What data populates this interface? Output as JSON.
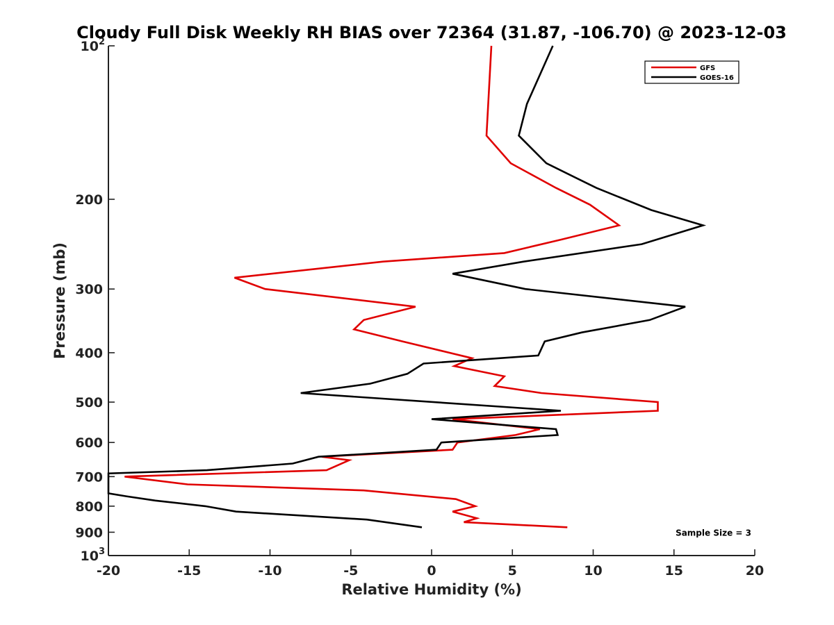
{
  "chart_data": {
    "type": "line",
    "title": "Cloudy Full Disk Weekly RH BIAS over 72364 (31.87, -106.70) @ 2023-12-03",
    "xlabel": "Relative Humidity (%)",
    "ylabel": "Pressure (mb)",
    "xlim": [
      -20,
      20
    ],
    "ylim": [
      100,
      1000
    ],
    "y_scale": "log",
    "y_reversed": true,
    "grid": false,
    "legend_position": "top-right",
    "x_ticks": [
      "-20",
      "-15",
      "-10",
      "-5",
      "0",
      "5",
      "10",
      "15",
      "20"
    ],
    "y_ticks": [
      {
        "value": 100,
        "label": "10",
        "exp": "2"
      },
      {
        "value": 200,
        "label": "200"
      },
      {
        "value": 300,
        "label": "300"
      },
      {
        "value": 400,
        "label": "400"
      },
      {
        "value": 500,
        "label": "500"
      },
      {
        "value": 600,
        "label": "600"
      },
      {
        "value": 700,
        "label": "700"
      },
      {
        "value": 800,
        "label": "800"
      },
      {
        "value": 900,
        "label": "900"
      },
      {
        "value": 1000,
        "label": "10",
        "exp": "3"
      }
    ],
    "series": [
      {
        "name": "GFS",
        "color": "#e00000",
        "points": [
          [
            3.7,
            100
          ],
          [
            3.4,
            150
          ],
          [
            4.9,
            170
          ],
          [
            7.7,
            190
          ],
          [
            9.8,
            205
          ],
          [
            11.6,
            225
          ],
          [
            8.0,
            240
          ],
          [
            4.5,
            255
          ],
          [
            -3.0,
            265
          ],
          [
            -12.2,
            285
          ],
          [
            -10.3,
            300
          ],
          [
            -1.0,
            325
          ],
          [
            -4.2,
            345
          ],
          [
            -4.8,
            360
          ],
          [
            -1.8,
            380
          ],
          [
            2.5,
            410
          ],
          [
            1.4,
            425
          ],
          [
            4.5,
            445
          ],
          [
            3.9,
            465
          ],
          [
            6.8,
            480
          ],
          [
            14.0,
            500
          ],
          [
            14.0,
            520
          ],
          [
            1.3,
            540
          ],
          [
            6.7,
            565
          ],
          [
            5.2,
            580
          ],
          [
            1.6,
            600
          ],
          [
            1.3,
            620
          ],
          [
            -6.8,
            640
          ],
          [
            -5.1,
            650
          ],
          [
            -6.5,
            680
          ],
          [
            -19.0,
            700
          ],
          [
            -15.1,
            725
          ],
          [
            -4.2,
            745
          ],
          [
            1.5,
            775
          ],
          [
            2.7,
            800
          ],
          [
            1.3,
            820
          ],
          [
            2.8,
            845
          ],
          [
            2.0,
            860
          ],
          [
            8.4,
            880
          ]
        ]
      },
      {
        "name": "GOES-16",
        "color": "#000000",
        "points": [
          [
            7.5,
            100
          ],
          [
            5.9,
            130
          ],
          [
            5.4,
            150
          ],
          [
            7.1,
            170
          ],
          [
            10.2,
            190
          ],
          [
            13.6,
            210
          ],
          [
            16.8,
            225
          ],
          [
            13.0,
            245
          ],
          [
            5.7,
            265
          ],
          [
            1.3,
            280
          ],
          [
            5.8,
            300
          ],
          [
            15.7,
            325
          ],
          [
            13.5,
            345
          ],
          [
            9.3,
            365
          ],
          [
            7.0,
            380
          ],
          [
            6.6,
            405
          ],
          [
            -0.5,
            420
          ],
          [
            -1.5,
            440
          ],
          [
            -3.8,
            460
          ],
          [
            -8.1,
            480
          ],
          [
            8.0,
            520
          ],
          [
            0.0,
            540
          ],
          [
            7.7,
            565
          ],
          [
            7.8,
            580
          ],
          [
            0.6,
            600
          ],
          [
            0.3,
            620
          ],
          [
            -7.0,
            640
          ],
          [
            -8.6,
            660
          ],
          [
            -13.9,
            680
          ],
          [
            -20.0,
            690
          ],
          [
            -20.0,
            755
          ],
          [
            -18.9,
            765
          ],
          [
            -17.1,
            780
          ],
          [
            -14.0,
            800
          ],
          [
            -12.1,
            820
          ],
          [
            -4.0,
            850
          ],
          [
            -0.6,
            880
          ]
        ]
      }
    ],
    "annotations": [
      {
        "text": "Sample Size = 3",
        "x": 15.1,
        "y": 900
      }
    ]
  }
}
